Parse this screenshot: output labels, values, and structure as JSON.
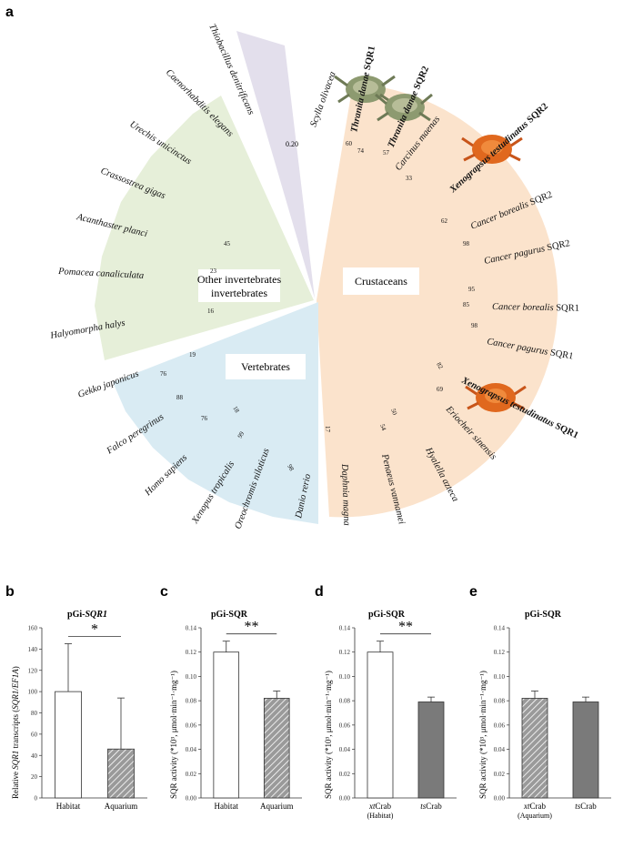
{
  "panel_labels": {
    "a": "a",
    "b": "b",
    "c": "c",
    "d": "d",
    "e": "e"
  },
  "tree": {
    "groups": [
      "Other invertebrates",
      "Crustaceans",
      "Vertebrates"
    ],
    "scale_label": "0.20",
    "species": {
      "thiobacillus": "Thiobacillus denitrificans",
      "caenorhabditis": "Caenorhabditis elegans",
      "urechis": "Urechis unicinctus",
      "crassostrea": "Crassostrea gigas",
      "acanthaster": "Acanthaster planci",
      "pomacea": "Pomacea canaliculata",
      "halyomorpha": "Halyomorpha halys",
      "gekko": "Gekko japonicus",
      "falco": "Falco peregrinus",
      "homo": "Homo sapiens",
      "xenopus_trop": "Xenopus tropicalis",
      "oreochromis": "Oreochromis niloticus",
      "danio": "Danio rerio",
      "daphnia": "Daphnia magna",
      "penaeus": "Penaeus vannamei",
      "hyalella": "Hyalella azteca",
      "eriocheir": "Eriocheir sinensis",
      "scylla": "Scylla olivacea",
      "carcinus": "Carcinus maenas",
      "thr1_genus": "Thranita danae",
      "thr1_gene": "SQR1",
      "thr2_genus": "Thranita danae",
      "thr2_gene": "SQR2",
      "xeno_sqr2_genus": "Xenograpsus testudinatus",
      "xeno_sqr2_gene": "SQR2",
      "xeno_sqr1_genus": "Xenograpsus testudinatus",
      "xeno_sqr1_gene": "SQR1",
      "cb2_genus": "Cancer borealis",
      "cb2_gene": "SQR2",
      "cp2_genus": "Cancer pagurus",
      "cp2_gene": "SQR2",
      "cb1_genus": "Cancer borealis",
      "cb1_gene": "SQR1",
      "cp1_genus": "Cancer pagurus",
      "cp1_gene": "SQR1"
    },
    "bootstrap": {
      "b45": "45",
      "b23": "23",
      "b16": "16",
      "b60": "60",
      "b74": "74",
      "b57": "57",
      "b33": "33",
      "b62": "62",
      "b98a": "98",
      "b95": "95",
      "b85": "85",
      "b98b": "98",
      "b82": "82",
      "b69": "69",
      "b50": "50",
      "b54": "54",
      "b17": "17",
      "b19": "19",
      "b76a": "76",
      "b88": "88",
      "b18": "18",
      "b76b": "76",
      "b99": "99",
      "b98c": "98"
    },
    "colors": {
      "crustaceans": "#fbe3cc",
      "other_invertebrates": "#e6efd9",
      "vertebrates": "#d9ebf3",
      "bacteria": "#e3dfec"
    }
  },
  "chart_data": [
    {
      "panel": "b",
      "type": "bar",
      "title_prefix": "pGi-",
      "title_italic": "SQR1",
      "ylabel_pre": "Relative ",
      "ylabel_gene": "SQR1",
      "ylabel_mid": " transcripts (",
      "ylabel_ratio": "SQR1/EF1A",
      "ylabel_post": ")",
      "categories": [
        "Habitat",
        "Aquarium"
      ],
      "values": [
        100,
        46
      ],
      "errors": [
        45,
        48
      ],
      "ylim": [
        0,
        160
      ],
      "yticks": [
        "0",
        "20",
        "40",
        "60",
        "80",
        "100",
        "120",
        "140",
        "160"
      ],
      "fills": [
        "white",
        "hatched"
      ],
      "significance": "*"
    },
    {
      "panel": "c",
      "type": "bar",
      "title": "pGi-SQR",
      "ylabel": "SQR activity (*10³, μmol·min⁻¹·mg⁻¹)",
      "categories": [
        "Habitat",
        "Aquarium"
      ],
      "values": [
        0.12,
        0.082
      ],
      "errors": [
        0.009,
        0.006
      ],
      "ylim": [
        0,
        0.14
      ],
      "yticks": [
        "0.00",
        "0.02",
        "0.04",
        "0.06",
        "0.08",
        "0.10",
        "0.12",
        "0.14"
      ],
      "fills": [
        "white",
        "hatched"
      ],
      "significance": "**"
    },
    {
      "panel": "d",
      "type": "bar",
      "title": "pGi-SQR",
      "ylabel": "SQR activity (*10³, μmol·min⁻¹·mg⁻¹)",
      "categories": [
        "xtCrab",
        "tsCrab"
      ],
      "sublabels": [
        "(Habitat)",
        ""
      ],
      "values": [
        0.12,
        0.079
      ],
      "errors": [
        0.009,
        0.004
      ],
      "ylim": [
        0,
        0.14
      ],
      "yticks": [
        "0.00",
        "0.02",
        "0.04",
        "0.06",
        "0.08",
        "0.10",
        "0.12",
        "0.14"
      ],
      "fills": [
        "white",
        "gray"
      ],
      "significance": "**"
    },
    {
      "panel": "e",
      "type": "bar",
      "title": "pGi-SQR",
      "ylabel": "SQR activity (*10³, μmol·min⁻¹·mg⁻¹)",
      "categories": [
        "xtCrab",
        "tsCrab"
      ],
      "sublabels": [
        "(Aquarium)",
        ""
      ],
      "values": [
        0.082,
        0.079
      ],
      "errors": [
        0.006,
        0.004
      ],
      "ylim": [
        0,
        0.14
      ],
      "yticks": [
        "0.00",
        "0.02",
        "0.04",
        "0.06",
        "0.08",
        "0.10",
        "0.12",
        "0.14"
      ],
      "fills": [
        "hatched",
        "gray"
      ],
      "significance": ""
    }
  ]
}
